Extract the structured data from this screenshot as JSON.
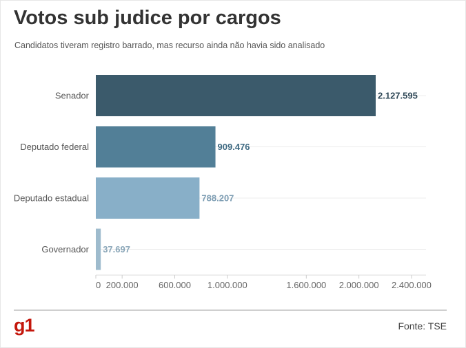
{
  "title": "Votos sub judice por cargos",
  "subtitle": "Candidatos tiveram registro barrado, mas recurso ainda não havia sido analisado",
  "source": "Fonte: TSE",
  "logo": "g1",
  "chart_data": {
    "type": "bar",
    "orientation": "horizontal",
    "categories": [
      "Senador",
      "Deputado federal",
      "Deputado estadual",
      "Governador"
    ],
    "values": [
      2127595,
      909476,
      788207,
      37697
    ],
    "value_labels": [
      "2.127.595",
      "909.476",
      "788.207",
      "37.697"
    ],
    "colors": [
      "#3b5a6b",
      "#527f97",
      "#88afc8",
      "#9ebbcd"
    ],
    "label_colors": [
      "#2e4756",
      "#3f6a82",
      "#7d9db3",
      "#8aa6b8"
    ],
    "xlim": [
      0,
      2500000
    ],
    "xticks": [
      0,
      200000,
      600000,
      1000000,
      1600000,
      2000000,
      2400000
    ],
    "xtick_labels": [
      "0",
      "200.000",
      "600.000",
      "1.000.000",
      "1.600.000",
      "2.000.000",
      "2.400.000"
    ],
    "grid": true
  }
}
